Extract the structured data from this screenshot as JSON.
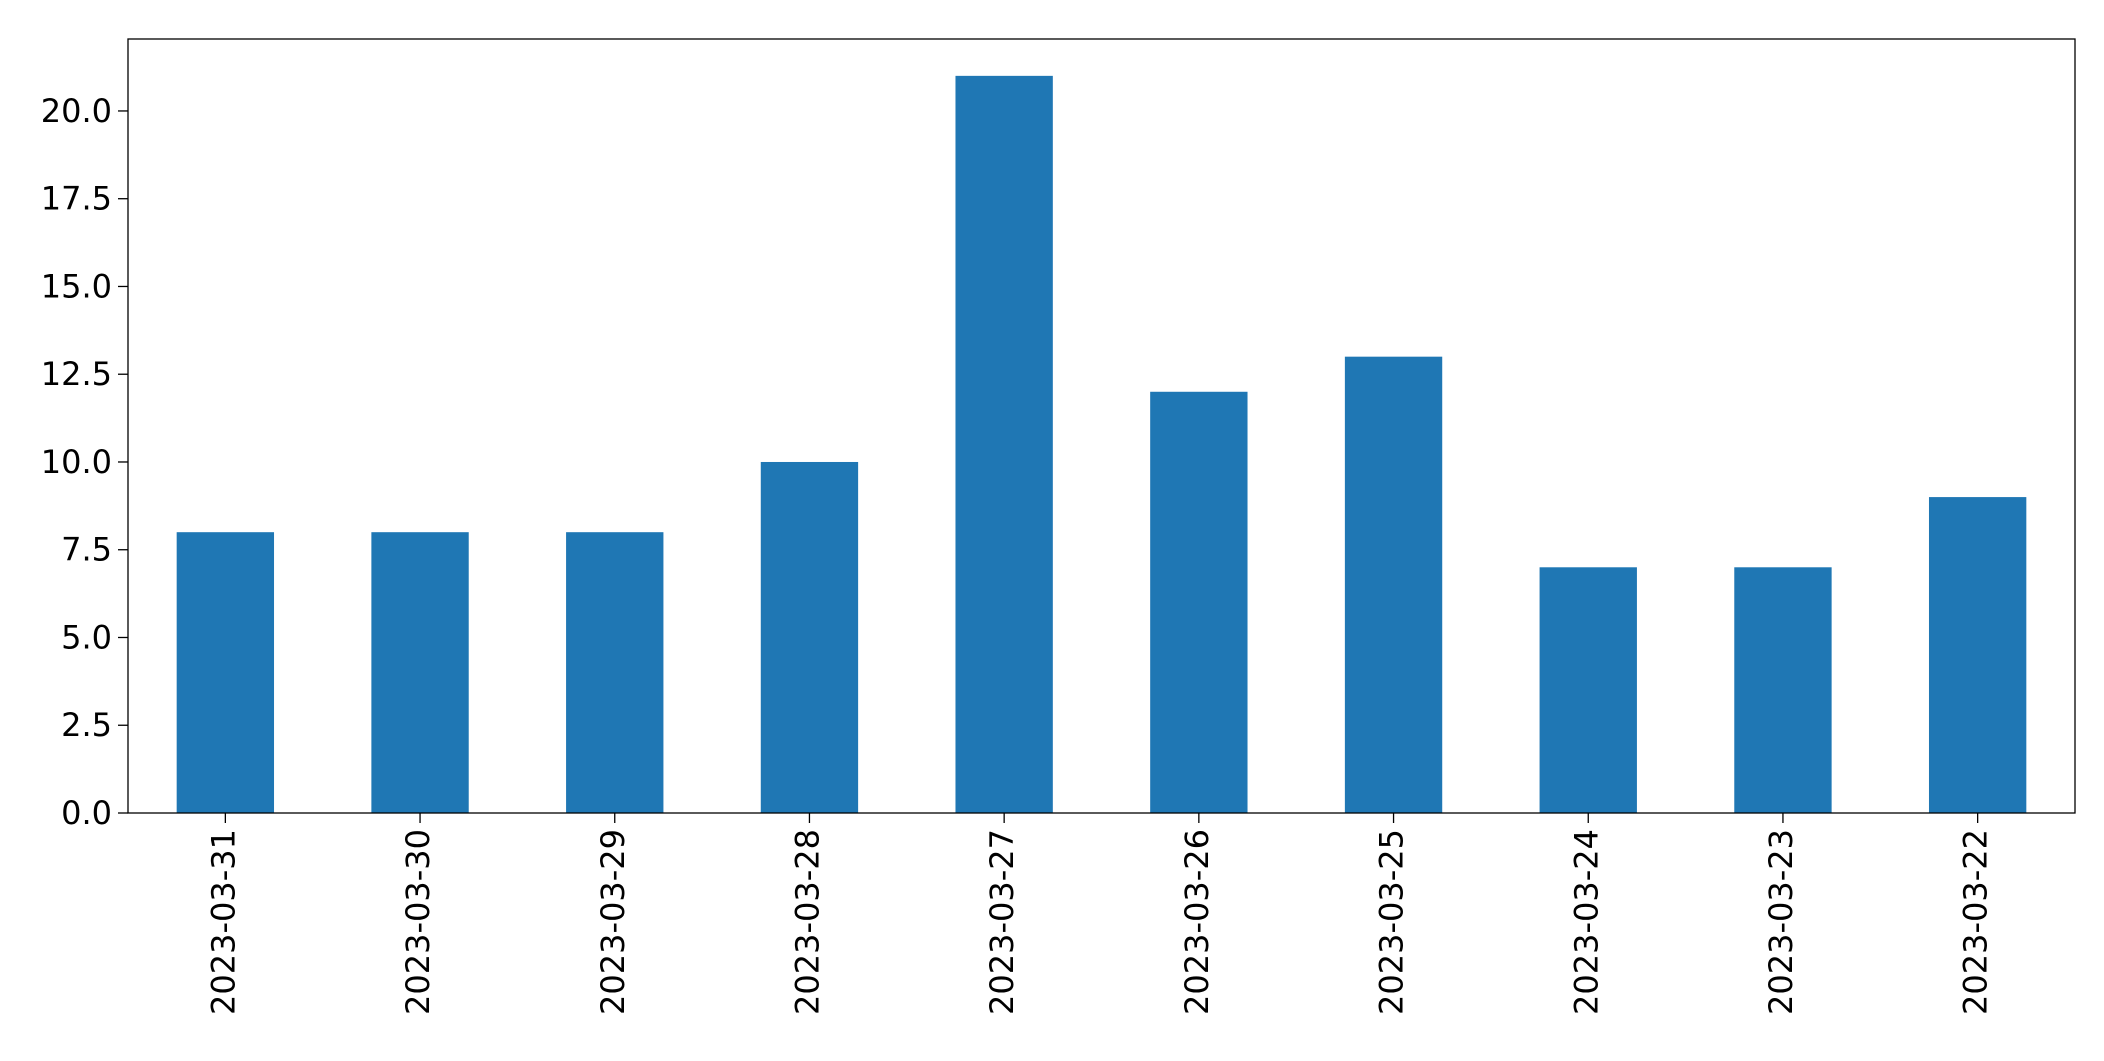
{
  "chart_data": {
    "type": "bar",
    "categories": [
      "2023-03-31",
      "2023-03-30",
      "2023-03-29",
      "2023-03-28",
      "2023-03-27",
      "2023-03-26",
      "2023-03-25",
      "2023-03-24",
      "2023-03-23",
      "2023-03-22"
    ],
    "values": [
      8,
      8,
      8,
      10,
      21,
      12,
      13,
      7,
      7,
      9
    ],
    "color": "#1f77b4",
    "ylim": [
      0,
      22.05
    ],
    "yticks": [
      {
        "value": 0,
        "label": "0.0"
      },
      2.5,
      {
        "value": 5,
        "label": "5.0"
      },
      7.5,
      {
        "value": 10,
        "label": "10.0"
      },
      12.5,
      {
        "value": 15,
        "label": "15.0"
      },
      17.5,
      {
        "value": 20,
        "label": "20.0"
      }
    ],
    "grid": false
  }
}
